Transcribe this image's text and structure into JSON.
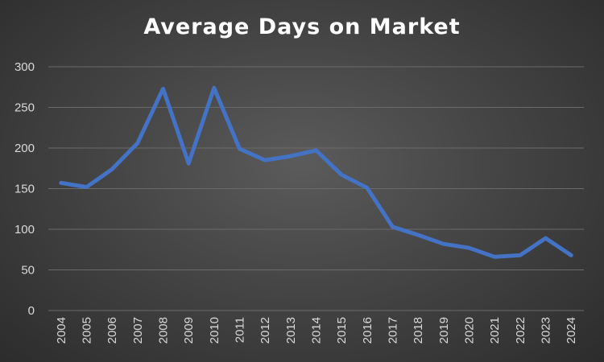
{
  "chart_data": {
    "type": "line",
    "title": "Average Days on Market",
    "xlabel": "",
    "ylabel": "",
    "x": [
      "2004",
      "2005",
      "2006",
      "2007",
      "2008",
      "2009",
      "2010",
      "2011",
      "2012",
      "2013",
      "2014",
      "2015",
      "2016",
      "2017",
      "2018",
      "2019",
      "2020",
      "2021",
      "2022",
      "2023",
      "2024"
    ],
    "series": [
      {
        "name": "",
        "values": [
          157,
          152,
          174,
          206,
          273,
          181,
          274,
          199,
          185,
          190,
          197,
          167,
          151,
          103,
          93,
          82,
          77,
          66,
          68,
          89,
          68
        ]
      }
    ],
    "ylim": [
      0,
      300
    ],
    "yticks": [
      "0",
      "50",
      "100",
      "150",
      "200",
      "250",
      "300"
    ],
    "grid": true,
    "legend": "none",
    "colors": {
      "line": "#4472C4",
      "grid": "#6a6a6a",
      "text": "#d9d9d9",
      "title": "#ffffff"
    }
  }
}
